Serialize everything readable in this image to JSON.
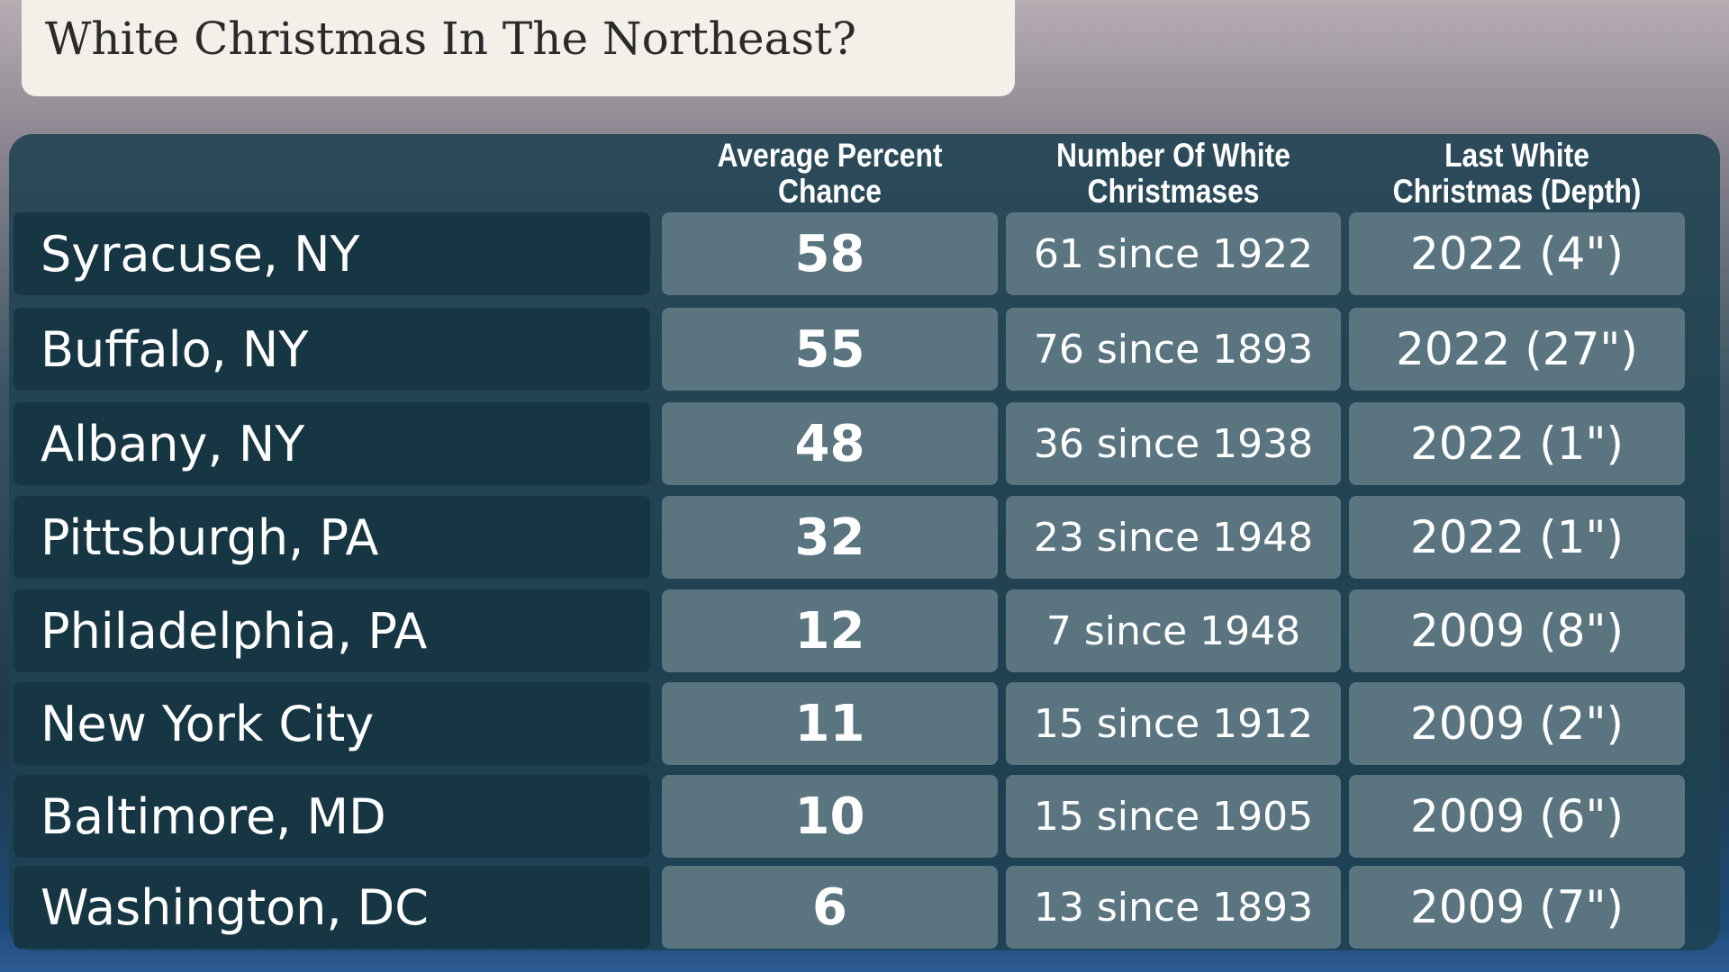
{
  "header": {
    "title": "White Christmas In The Northeast?"
  },
  "table": {
    "columns": [
      "Average Percent Chance",
      "Number Of White Christmases",
      "Last White Christmas (Depth)"
    ],
    "rows": [
      [
        "Syracuse, NY",
        58,
        "61 since 1922",
        "2022 (4\")"
      ],
      [
        "Buffalo, NY",
        55,
        "76 since 1893",
        "2022 (27\")"
      ],
      [
        "Albany, NY",
        48,
        "36 since 1938",
        "2022 (1\")"
      ],
      [
        "Pittsburgh, PA",
        32,
        "23 since 1948",
        "2022 (1\")"
      ],
      [
        "Philadelphia, PA",
        12,
        "7 since 1948",
        "2009 (8\")"
      ],
      [
        "New York City",
        11,
        "15 since 1912",
        "2009 (2\")"
      ],
      [
        "Baltimore, MD",
        10,
        "15 since 1905",
        "2009 (6\")"
      ],
      [
        "Washington, DC",
        6,
        "13 since 1893",
        "2009 (7\")"
      ]
    ]
  }
}
